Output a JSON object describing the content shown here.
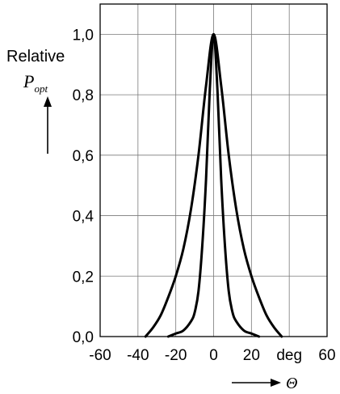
{
  "chart_data": {
    "type": "line",
    "title": "",
    "xlabel": "Θ",
    "x_unit": "deg",
    "ylabel": "Relative",
    "ylabel_symbol": "P",
    "ylabel_subscript": "opt",
    "xlim": [
      -60,
      60
    ],
    "ylim": [
      0,
      1.1
    ],
    "x_ticks": [
      "-60",
      "-40",
      "-20",
      "0",
      "20",
      "deg",
      "60"
    ],
    "y_ticks": [
      "0,0",
      "0,2",
      "0,4",
      "0,6",
      "0,8",
      "1,0"
    ],
    "grid": true,
    "line_color": "#000000",
    "series": [
      {
        "x": [
          -36,
          -32,
          -28,
          -24,
          -20,
          -16,
          -12,
          -8,
          -4,
          0,
          4,
          8,
          12,
          16,
          20,
          24,
          28,
          32,
          36
        ],
        "y": [
          0.0,
          0.03,
          0.07,
          0.13,
          0.2,
          0.29,
          0.42,
          0.6,
          0.83,
          1.0,
          0.83,
          0.6,
          0.42,
          0.29,
          0.2,
          0.13,
          0.07,
          0.03,
          0.0
        ]
      },
      {
        "x": [
          -24,
          -20,
          -16,
          -12,
          -10,
          -8,
          -6,
          -4,
          -2,
          0,
          2,
          4,
          6,
          8,
          10,
          12,
          16,
          20,
          24
        ],
        "y": [
          0.0,
          0.01,
          0.02,
          0.05,
          0.08,
          0.15,
          0.3,
          0.52,
          0.82,
          1.0,
          0.82,
          0.52,
          0.3,
          0.15,
          0.08,
          0.05,
          0.02,
          0.01,
          0.0
        ]
      }
    ]
  }
}
